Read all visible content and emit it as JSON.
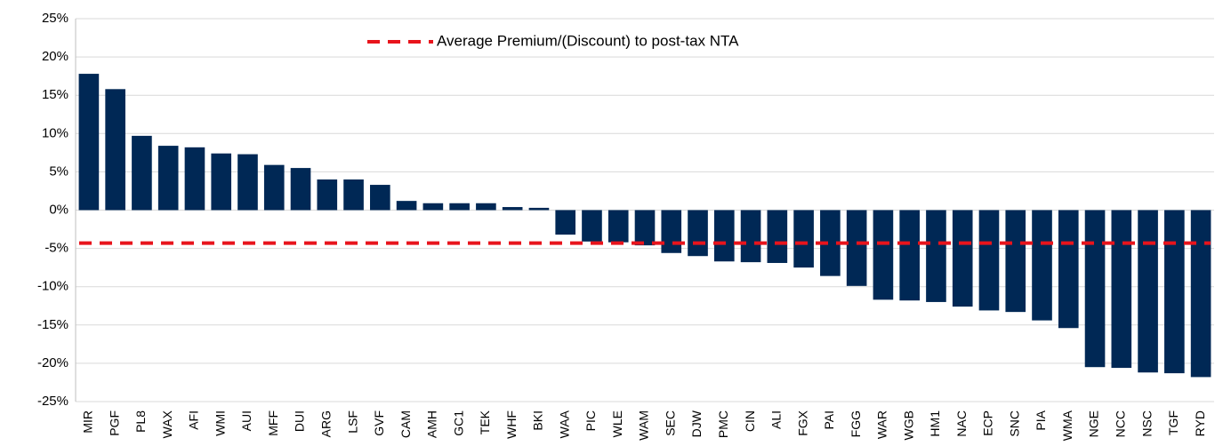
{
  "chart_data": {
    "type": "bar",
    "categories": [
      "MIR",
      "PGF",
      "PL8",
      "WAX",
      "AFI",
      "WMI",
      "AUI",
      "MFF",
      "DUI",
      "ARG",
      "LSF",
      "GVF",
      "CAM",
      "AMH",
      "GC1",
      "TEK",
      "WHF",
      "BKI",
      "WAA",
      "PIC",
      "WLE",
      "WAM",
      "SEC",
      "DJW",
      "PMC",
      "CIN",
      "ALI",
      "FGX",
      "PAI",
      "FGG",
      "WAR",
      "WGB",
      "HM1",
      "NAC",
      "ECP",
      "SNC",
      "PIA",
      "WMA",
      "NGE",
      "NCC",
      "NSC",
      "TGF",
      "RYD"
    ],
    "values": [
      17.8,
      15.8,
      9.7,
      8.4,
      8.2,
      7.4,
      7.3,
      5.9,
      5.5,
      4.0,
      4.0,
      3.3,
      1.2,
      0.9,
      0.9,
      0.9,
      0.4,
      0.3,
      -3.2,
      -4.1,
      -4.2,
      -4.6,
      -5.6,
      -6.0,
      -6.7,
      -6.8,
      -6.9,
      -7.5,
      -8.6,
      -9.9,
      -11.7,
      -11.8,
      -12.0,
      -12.6,
      -13.1,
      -13.3,
      -14.4,
      -15.4,
      -20.5,
      -20.6,
      -21.2,
      -21.3,
      -21.8
    ],
    "color": "#002855",
    "average": {
      "name": "Average Premium/(Discount) to post-tax NTA",
      "value": -4.3,
      "color": "#e8141c"
    },
    "ylim": [
      -25,
      25
    ],
    "yticks": [
      {
        "value": -25,
        "label": "-25%"
      },
      {
        "value": -20,
        "label": "-20%"
      },
      {
        "value": -15,
        "label": "-15%"
      },
      {
        "value": -10,
        "label": "-10%"
      },
      {
        "value": -5,
        "label": "-5%"
      },
      {
        "value": 0,
        "label": "0%"
      },
      {
        "value": 5,
        "label": "5%"
      },
      {
        "value": 10,
        "label": "10%"
      },
      {
        "value": 15,
        "label": "15%"
      },
      {
        "value": 20,
        "label": "20%"
      },
      {
        "value": 25,
        "label": "25%"
      }
    ],
    "grid": true
  }
}
